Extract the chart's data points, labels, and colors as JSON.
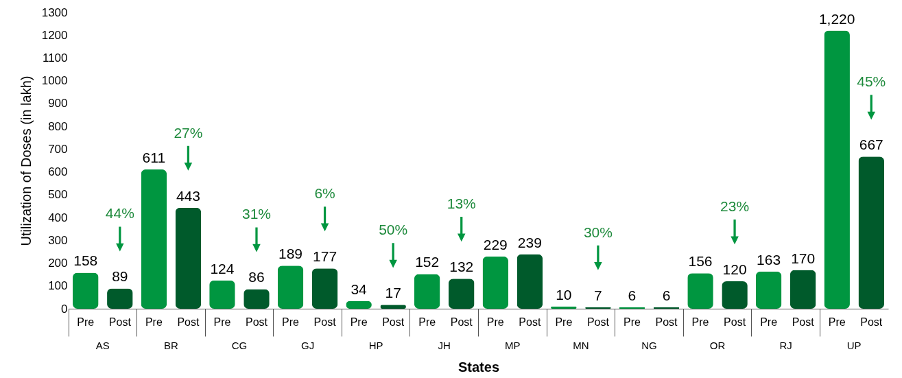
{
  "chart_data": {
    "type": "bar",
    "xlabel": "States",
    "ylabel": "Utilization of Doses (in lakh)",
    "categories": [
      "AS",
      "BR",
      "CG",
      "GJ",
      "HP",
      "JH",
      "MP",
      "MN",
      "NG",
      "OR",
      "RJ",
      "UP"
    ],
    "series": [
      {
        "name": "Pre",
        "color": "#009640",
        "values": [
          158,
          611,
          124,
          189,
          34,
          152,
          229,
          10,
          6,
          156,
          163,
          1220
        ],
        "value_labels": [
          "158",
          "611",
          "124",
          "189",
          "34",
          "152",
          "229",
          "10",
          "6",
          "156",
          "163",
          "1,220"
        ]
      },
      {
        "name": "Post",
        "color": "#005a2b",
        "values": [
          89,
          443,
          86,
          177,
          17,
          132,
          239,
          7,
          6,
          120,
          170,
          667
        ],
        "value_labels": [
          "89",
          "443",
          "86",
          "177",
          "17",
          "132",
          "239",
          "7",
          "6",
          "120",
          "170",
          "667"
        ]
      }
    ],
    "ylim": [
      0,
      1300
    ],
    "yticks": [
      0,
      100,
      200,
      300,
      400,
      500,
      600,
      700,
      800,
      900,
      1000,
      1100,
      1200,
      1300
    ],
    "grid": false,
    "annotations": [
      "44%",
      "27%",
      "31%",
      "6%",
      "50%",
      "13%",
      "30%",
      "23%",
      "45%"
    ]
  }
}
